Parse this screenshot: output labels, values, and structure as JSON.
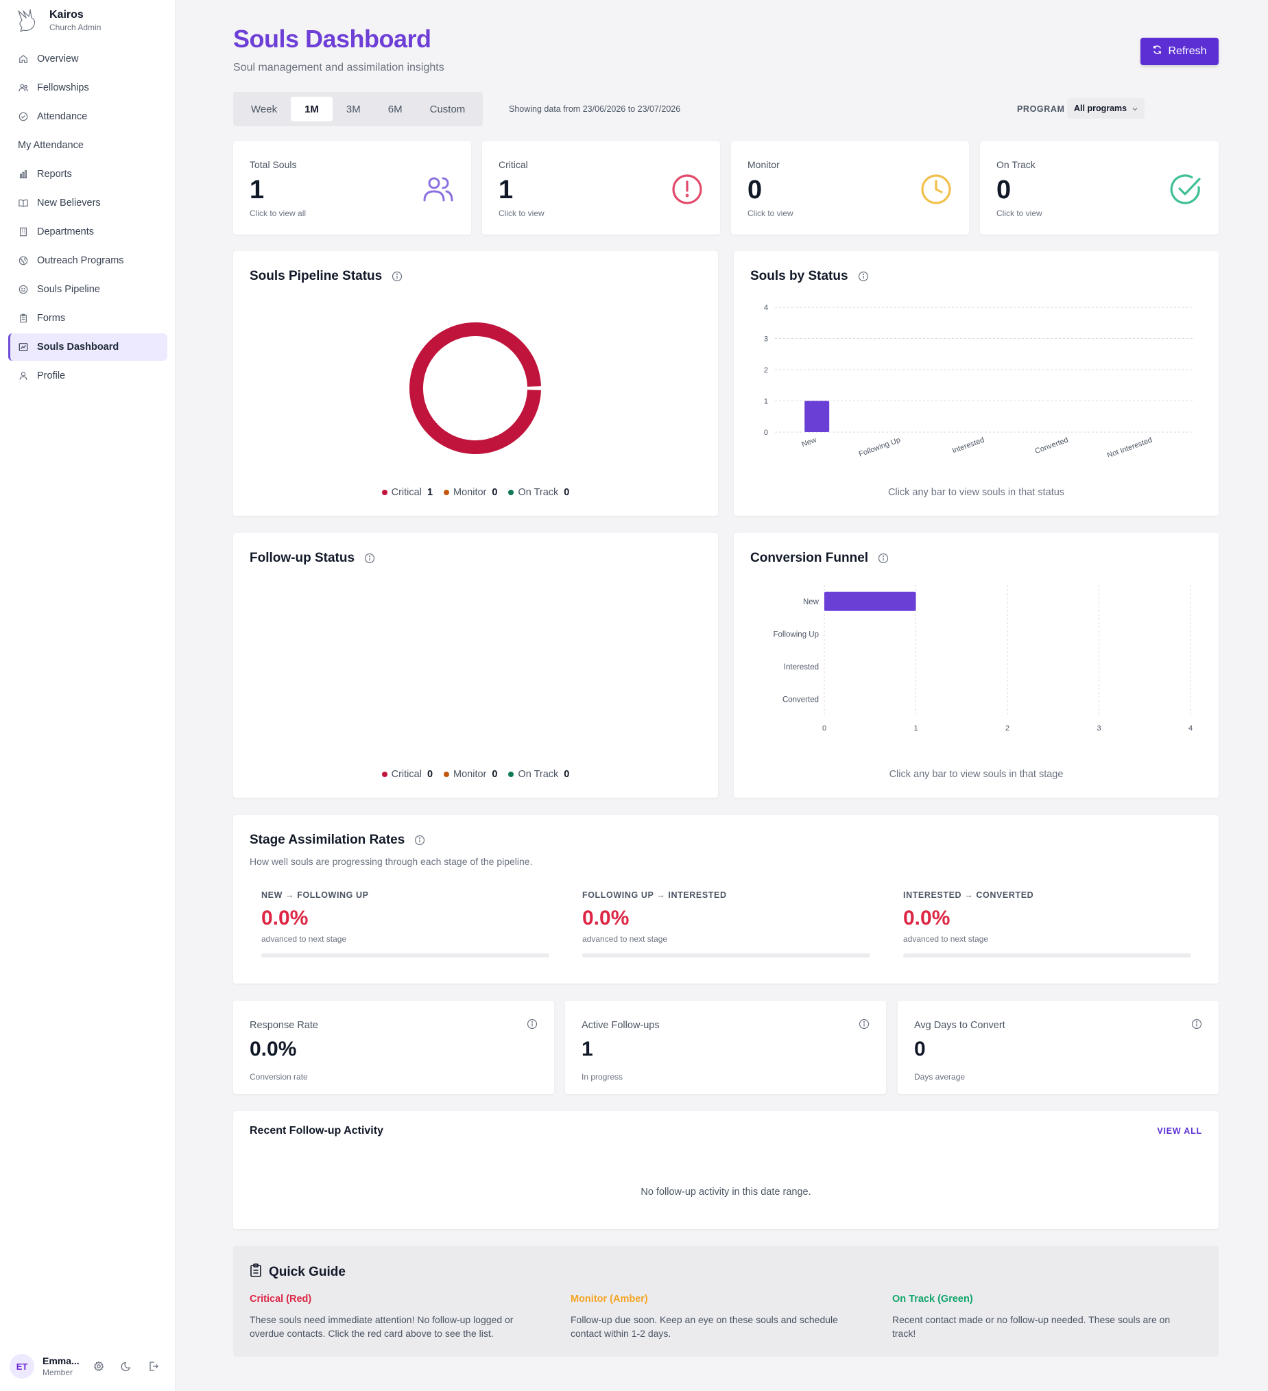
{
  "brand": {
    "name": "Kairos",
    "subtitle": "Church Admin"
  },
  "sidebar": {
    "items": [
      {
        "label": "Overview",
        "icon": "home-icon"
      },
      {
        "label": "Fellowships",
        "icon": "users-icon"
      },
      {
        "label": "Attendance",
        "icon": "check-circle-icon"
      },
      {
        "label": "My Attendance",
        "icon": ""
      },
      {
        "label": "Reports",
        "icon": "bar-chart-icon"
      },
      {
        "label": "New Believers",
        "icon": "book-icon"
      },
      {
        "label": "Departments",
        "icon": "building-icon"
      },
      {
        "label": "Outreach Programs",
        "icon": "globe-icon"
      },
      {
        "label": "Souls Pipeline",
        "icon": "smile-icon"
      },
      {
        "label": "Forms",
        "icon": "clipboard-icon"
      },
      {
        "label": "Souls Dashboard",
        "icon": "dashboard-icon",
        "active": true
      },
      {
        "label": "Profile",
        "icon": "user-icon"
      }
    ]
  },
  "user": {
    "initials": "ET",
    "name": "Emma...",
    "role": "Member"
  },
  "header": {
    "title": "Souls Dashboard",
    "subtitle": "Soul management and assimilation insights",
    "refresh_label": "Refresh"
  },
  "filters": {
    "ranges": [
      "Week",
      "1M",
      "3M",
      "6M",
      "Custom"
    ],
    "active_range": "1M",
    "range_info": "Showing data from 23/06/2026 to 23/07/2026",
    "program_label": "PROGRAM",
    "program_value": "All programs"
  },
  "stats": [
    {
      "title": "Total Souls",
      "value": "1",
      "hint": "Click to view all",
      "color": "#8b6fe0",
      "icon": "users-icon"
    },
    {
      "title": "Critical",
      "value": "1",
      "hint": "Click to view",
      "color": "#e24a6a",
      "icon": "alert-circle-icon"
    },
    {
      "title": "Monitor",
      "value": "0",
      "hint": "Click to view",
      "color": "#f2bf4a",
      "icon": "clock-icon"
    },
    {
      "title": "On Track",
      "value": "0",
      "hint": "Click to view",
      "color": "#3fbf95",
      "icon": "check-circle-icon"
    }
  ],
  "pipeline": {
    "title": "Souls Pipeline Status",
    "legend": [
      {
        "label": "Critical",
        "value": "1",
        "color": "#c0143c"
      },
      {
        "label": "Monitor",
        "value": "0",
        "color": "#c2570c"
      },
      {
        "label": "On Track",
        "value": "0",
        "color": "#0e7a55"
      }
    ]
  },
  "by_status": {
    "title": "Souls by Status",
    "hint": "Click any bar to view souls in that status"
  },
  "followup": {
    "title": "Follow-up Status",
    "legend": [
      {
        "label": "Critical",
        "value": "0",
        "color": "#c0143c"
      },
      {
        "label": "Monitor",
        "value": "0",
        "color": "#c2570c"
      },
      {
        "label": "On Track",
        "value": "0",
        "color": "#0e7a55"
      }
    ]
  },
  "funnel": {
    "title": "Conversion Funnel",
    "hint": "Click any bar to view souls in that stage"
  },
  "chart_data": [
    {
      "type": "pie",
      "title": "Souls Pipeline Status",
      "categories": [
        "Critical",
        "Monitor",
        "On Track"
      ],
      "values": [
        1,
        0,
        0
      ],
      "colors": [
        "#c0143c",
        "#c2570c",
        "#0e7a55"
      ]
    },
    {
      "type": "bar",
      "title": "Souls by Status",
      "categories": [
        "New",
        "Following Up",
        "Interested",
        "Converted",
        "Not Interested"
      ],
      "values": [
        1,
        0,
        0,
        0,
        0
      ],
      "yticks": [
        "0",
        "1",
        "2",
        "3",
        "4"
      ],
      "ylim": [
        0,
        4
      ],
      "grid": true,
      "color": "#6a3fd6"
    },
    {
      "type": "bar",
      "orientation": "horizontal",
      "title": "Conversion Funnel",
      "categories": [
        "New",
        "Following Up",
        "Interested",
        "Converted"
      ],
      "values": [
        1,
        0,
        0,
        0
      ],
      "xticks": [
        "0",
        "1",
        "2",
        "3",
        "4"
      ],
      "xlim": [
        0,
        4
      ],
      "grid": true,
      "color": "#6a3fd6"
    }
  ],
  "assimilation": {
    "title": "Stage Assimilation Rates",
    "subtitle": "How well souls are progressing through each stage of the pipeline.",
    "stages": [
      {
        "label": "NEW → FOLLOWING UP",
        "value": "0.0%",
        "note": "advanced to next stage",
        "progress": 0
      },
      {
        "label": "FOLLOWING UP → INTERESTED",
        "value": "0.0%",
        "note": "advanced to next stage",
        "progress": 0
      },
      {
        "label": "INTERESTED → CONVERTED",
        "value": "0.0%",
        "note": "advanced to next stage",
        "progress": 0
      }
    ]
  },
  "metrics": [
    {
      "title": "Response Rate",
      "value": "0.0%",
      "hint": "Conversion rate"
    },
    {
      "title": "Active Follow-ups",
      "value": "1",
      "hint": "In progress"
    },
    {
      "title": "Avg Days to Convert",
      "value": "0",
      "hint": "Days average"
    }
  ],
  "recent": {
    "title": "Recent Follow-up Activity",
    "view_all": "VIEW ALL",
    "empty": "No follow-up activity in this date range."
  },
  "guide": {
    "title": "Quick Guide",
    "items": [
      {
        "head": "Critical (Red)",
        "color": "#dc2644",
        "text": "These souls need immediate attention! No follow-up logged or overdue contacts. Click the red card above to see the list."
      },
      {
        "head": "Monitor (Amber)",
        "color": "#f5a524",
        "text": "Follow-up due soon. Keep an eye on these souls and schedule contact within 1-2 days."
      },
      {
        "head": "On Track (Green)",
        "color": "#10a56a",
        "text": "Recent contact made or no follow-up needed. These souls are on track!"
      }
    ]
  }
}
